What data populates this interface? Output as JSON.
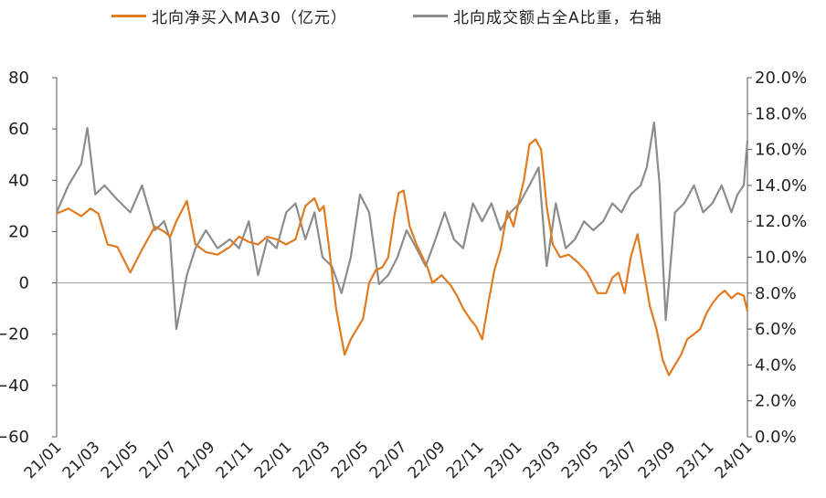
{
  "legend": {
    "series1": "北向净买入MA30（亿元）",
    "series2": "北向成交额占全A比重，右轴"
  },
  "colors": {
    "series1": "#E07B21",
    "series2": "#8C8C8C",
    "axis": "#555555",
    "zero": "#999999"
  },
  "chart_data": {
    "type": "line",
    "left_axis": {
      "ticks": [
        "80",
        "60",
        "40",
        "20",
        "0",
        "−20",
        "−40",
        "−60"
      ],
      "range": [
        -60,
        80
      ]
    },
    "right_axis": {
      "ticks": [
        "20.0%",
        "18.0%",
        "16.0%",
        "14.0%",
        "12.0%",
        "10.0%",
        "8.0%",
        "6.0%",
        "4.0%",
        "2.0%",
        "0.0%"
      ],
      "range": [
        0,
        20
      ]
    },
    "x_ticks": [
      "21/01",
      "21/03",
      "21/05",
      "21/07",
      "21/09",
      "21/11",
      "22/01",
      "22/03",
      "22/05",
      "22/07",
      "22/09",
      "22/11",
      "23/01",
      "23/03",
      "23/05",
      "23/07",
      "23/09",
      "23/11",
      "24/01"
    ],
    "x_range": [
      "2021-01-01",
      "2024-01-31"
    ],
    "series": [
      {
        "name": "北向净买入MA30（亿元）",
        "axis": "left",
        "x": [
          "2021-01-01",
          "2021-01-20",
          "2021-02-10",
          "2021-02-25",
          "2021-03-10",
          "2021-03-25",
          "2021-04-10",
          "2021-05-01",
          "2021-05-20",
          "2021-06-10",
          "2021-06-25",
          "2021-07-05",
          "2021-07-15",
          "2021-08-01",
          "2021-08-15",
          "2021-09-01",
          "2021-09-20",
          "2021-10-10",
          "2021-10-25",
          "2021-11-10",
          "2021-11-25",
          "2021-12-10",
          "2021-12-25",
          "2022-01-10",
          "2022-01-25",
          "2022-02-10",
          "2022-02-25",
          "2022-03-05",
          "2022-03-12",
          "2022-03-20",
          "2022-04-01",
          "2022-04-15",
          "2022-04-25",
          "2022-05-05",
          "2022-05-15",
          "2022-05-25",
          "2022-06-05",
          "2022-06-15",
          "2022-06-25",
          "2022-07-05",
          "2022-07-12",
          "2022-07-20",
          "2022-07-30",
          "2022-08-10",
          "2022-08-20",
          "2022-08-28",
          "2022-09-05",
          "2022-09-20",
          "2022-10-05",
          "2022-10-15",
          "2022-10-25",
          "2022-11-05",
          "2022-11-15",
          "2022-11-25",
          "2022-12-05",
          "2022-12-15",
          "2022-12-25",
          "2023-01-05",
          "2023-01-15",
          "2023-01-25",
          "2023-02-01",
          "2023-02-10",
          "2023-02-20",
          "2023-03-01",
          "2023-03-10",
          "2023-03-20",
          "2023-04-01",
          "2023-04-15",
          "2023-04-30",
          "2023-05-15",
          "2023-06-01",
          "2023-06-15",
          "2023-06-25",
          "2023-07-05",
          "2023-07-15",
          "2023-07-25",
          "2023-08-05",
          "2023-08-15",
          "2023-08-25",
          "2023-09-05",
          "2023-09-15",
          "2023-09-25",
          "2023-10-05",
          "2023-10-15",
          "2023-10-25",
          "2023-11-05",
          "2023-11-15",
          "2023-11-25",
          "2023-12-05",
          "2023-12-15",
          "2023-12-25",
          "2024-01-05",
          "2024-01-15",
          "2024-01-25",
          "2024-01-31"
        ],
        "values": [
          27,
          29,
          26,
          29,
          27,
          15,
          14,
          4,
          13,
          22,
          20,
          18,
          24,
          32,
          15,
          12,
          11,
          14,
          18,
          16,
          15,
          18,
          17,
          15,
          17,
          30,
          33,
          28,
          30,
          15,
          -10,
          -28,
          -22,
          -18,
          -14,
          0,
          5,
          6,
          10,
          26,
          35,
          36,
          22,
          15,
          10,
          6,
          0,
          3,
          -1,
          -5,
          -10,
          -14,
          -17,
          -22,
          -8,
          5,
          13,
          28,
          22,
          33,
          40,
          54,
          56,
          52,
          30,
          15,
          10,
          11,
          8,
          4,
          -4,
          -4,
          2,
          4,
          -4,
          10,
          19,
          5,
          -9,
          -18,
          -30,
          -36,
          -32,
          -28,
          -22,
          -20,
          -18,
          -12,
          -8,
          -5,
          -3,
          -6,
          -4,
          -5,
          -11
        ]
      },
      {
        "name": "北向成交额占全A比重，右轴",
        "axis": "right",
        "x": [
          "2021-01-01",
          "2021-01-20",
          "2021-02-10",
          "2021-02-20",
          "2021-03-05",
          "2021-03-20",
          "2021-04-10",
          "2021-05-01",
          "2021-05-20",
          "2021-06-10",
          "2021-06-25",
          "2021-07-05",
          "2021-07-15",
          "2021-08-01",
          "2021-08-15",
          "2021-09-01",
          "2021-09-20",
          "2021-10-10",
          "2021-10-25",
          "2021-11-10",
          "2021-11-25",
          "2021-12-10",
          "2021-12-25",
          "2022-01-10",
          "2022-01-25",
          "2022-02-10",
          "2022-02-25",
          "2022-03-10",
          "2022-03-25",
          "2022-04-10",
          "2022-04-25",
          "2022-05-10",
          "2022-05-25",
          "2022-06-10",
          "2022-06-25",
          "2022-07-10",
          "2022-07-25",
          "2022-08-10",
          "2022-08-25",
          "2022-09-10",
          "2022-09-25",
          "2022-10-10",
          "2022-10-25",
          "2022-11-10",
          "2022-11-25",
          "2022-12-10",
          "2022-12-25",
          "2023-01-10",
          "2023-01-25",
          "2023-02-10",
          "2023-02-25",
          "2023-03-10",
          "2023-03-25",
          "2023-04-10",
          "2023-04-25",
          "2023-05-10",
          "2023-05-25",
          "2023-06-10",
          "2023-06-25",
          "2023-07-10",
          "2023-07-25",
          "2023-08-10",
          "2023-08-20",
          "2023-09-01",
          "2023-09-10",
          "2023-09-15",
          "2023-09-20",
          "2023-10-05",
          "2023-10-20",
          "2023-11-05",
          "2023-11-20",
          "2023-12-05",
          "2023-12-20",
          "2024-01-05",
          "2024-01-15",
          "2024-01-25",
          "2024-01-31"
        ],
        "values": [
          12.5,
          14,
          15.2,
          17.2,
          13.5,
          14,
          13.2,
          12.5,
          14,
          11.5,
          12,
          11,
          6,
          9,
          10.5,
          11.5,
          10.5,
          11,
          10.5,
          12,
          9,
          11,
          10.5,
          12.5,
          13,
          11,
          12.5,
          10,
          9.5,
          8,
          10,
          13.5,
          12.5,
          8.5,
          9,
          10,
          11.5,
          10.5,
          9.5,
          11,
          12.5,
          11,
          10.5,
          13,
          12,
          13,
          11.5,
          12.5,
          13,
          14,
          15,
          9.5,
          13,
          10.5,
          11,
          12,
          11.5,
          12,
          13,
          12.5,
          13.5,
          14,
          15,
          17.5,
          14,
          10,
          6.5,
          12.5,
          13,
          14,
          12.5,
          13,
          14,
          12.5,
          13.5,
          14,
          16.5
        ]
      }
    ]
  }
}
